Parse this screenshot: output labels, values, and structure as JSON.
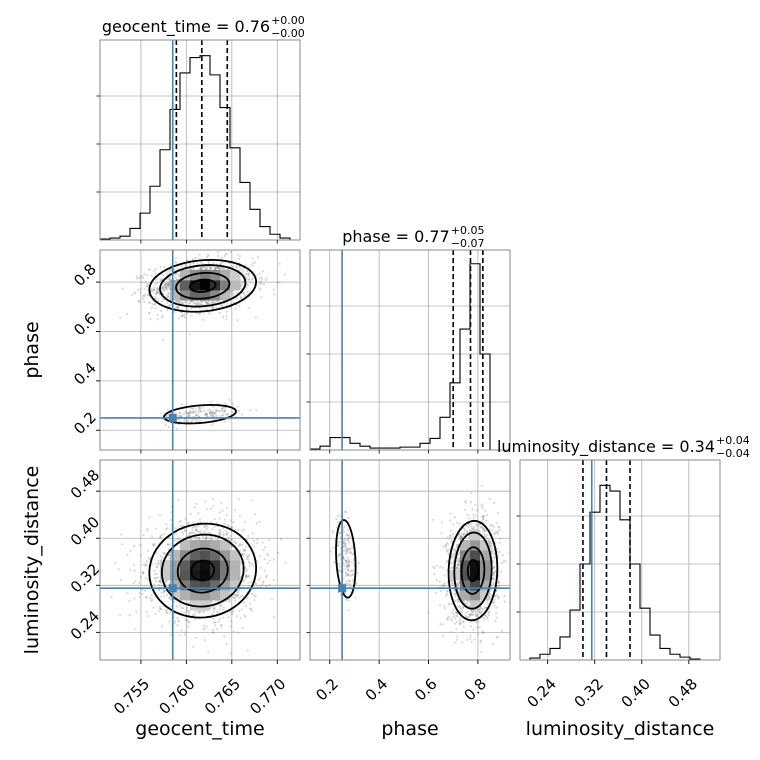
{
  "chart_data": {
    "type": "corner",
    "parameters": [
      "geocent_time",
      "phase",
      "luminosity_distance"
    ],
    "injection": {
      "color": "#4682b4",
      "geocent_time": 0.7585,
      "phase": 0.25,
      "luminosity_distance": 0.315
    },
    "axis_ranges": {
      "geocent_time": [
        0.7505,
        0.7725
      ],
      "phase": [
        0.12,
        0.93
      ],
      "luminosity_distance": [
        0.193,
        0.533
      ]
    },
    "ticks": {
      "geocent_time": {
        "values": [
          0.755,
          0.76,
          0.765,
          0.77
        ],
        "labels": [
          "0.755",
          "0.760",
          "0.765",
          "0.770"
        ]
      },
      "phase": {
        "values": [
          0.2,
          0.4,
          0.6,
          0.8
        ],
        "labels": [
          "0.2",
          "0.4",
          "0.6",
          "0.8"
        ]
      },
      "luminosity_distance": {
        "values": [
          0.24,
          0.32,
          0.4,
          0.48
        ],
        "labels": [
          "0.24",
          "0.32",
          "0.40",
          "0.48"
        ]
      }
    },
    "diag_titles": [
      {
        "param": "geocent_time",
        "text": "geocent_time = 0.76",
        "sup": "+0.00",
        "sub": "−0.00"
      },
      {
        "param": "phase",
        "text": "phase = 0.77",
        "sup": "+0.05",
        "sub": "−0.07"
      },
      {
        "param": "luminosity_distance",
        "text": "luminosity_distance = 0.34",
        "sup": "+0.04",
        "sub": "−0.04"
      }
    ],
    "axis_labels": {
      "geocent_time": "geocent_time",
      "phase": "phase",
      "luminosity_distance": "luminosity_distance"
    },
    "quantiles": {
      "geocent_time": [
        0.7589,
        0.7617,
        0.7645
      ],
      "phase": [
        0.7,
        0.77,
        0.82
      ],
      "luminosity_distance": [
        0.3,
        0.34,
        0.38
      ]
    },
    "histograms": {
      "geocent_time": {
        "edges": [
          0.7505,
          0.7516,
          0.7527,
          0.7538,
          0.7549,
          0.756,
          0.7571,
          0.7582,
          0.7593,
          0.7604,
          0.7615,
          0.7626,
          0.7637,
          0.7648,
          0.7659,
          0.767,
          0.7681,
          0.7692,
          0.7703,
          0.7714,
          0.7725
        ],
        "counts": [
          0.005,
          0.01,
          0.02,
          0.06,
          0.14,
          0.28,
          0.47,
          0.68,
          0.87,
          0.95,
          0.96,
          0.86,
          0.69,
          0.48,
          0.3,
          0.16,
          0.07,
          0.03,
          0.01,
          0.0
        ]
      },
      "phase": {
        "edges": [
          0.12,
          0.1605,
          0.201,
          0.2415,
          0.282,
          0.3225,
          0.363,
          0.4035,
          0.444,
          0.4845,
          0.525,
          0.5655,
          0.606,
          0.6465,
          0.687,
          0.7275,
          0.768,
          0.8085,
          0.849,
          0.8895,
          0.93
        ],
        "counts": [
          0.005,
          0.02,
          0.065,
          0.065,
          0.035,
          0.02,
          0.01,
          0.01,
          0.01,
          0.015,
          0.015,
          0.035,
          0.06,
          0.17,
          0.35,
          0.63,
          0.97,
          0.5,
          0.0,
          0.0
        ]
      },
      "luminosity_distance": {
        "edges": [
          0.193,
          0.21,
          0.227,
          0.244,
          0.261,
          0.278,
          0.295,
          0.312,
          0.329,
          0.346,
          0.363,
          0.38,
          0.397,
          0.414,
          0.431,
          0.448,
          0.465,
          0.482,
          0.499,
          0.516,
          0.533
        ],
        "counts": [
          0.0,
          0.01,
          0.03,
          0.06,
          0.12,
          0.26,
          0.5,
          0.77,
          0.91,
          0.88,
          0.73,
          0.5,
          0.27,
          0.13,
          0.06,
          0.03,
          0.015,
          0.005,
          0.0,
          0.0
        ]
      }
    },
    "modes": [
      {
        "pair": [
          "geocent_time",
          "phase"
        ],
        "x": 0.7618,
        "y": 0.785,
        "sx": 0.00235,
        "sy": 0.042,
        "rho": 0.15,
        "weight": 0.9,
        "levels": [
          0.6,
          1.25,
          2.0,
          2.5
        ]
      },
      {
        "pair": [
          "geocent_time",
          "phase"
        ],
        "x": 0.7615,
        "y": 0.265,
        "sx": 0.0018,
        "sy": 0.017,
        "rho": 0.3,
        "weight": 0.1,
        "levels": [
          2.2
        ]
      },
      {
        "pair": [
          "geocent_time",
          "luminosity_distance"
        ],
        "x": 0.7618,
        "y": 0.345,
        "sx": 0.0025,
        "sy": 0.034,
        "rho": 0.05,
        "weight": 1.0,
        "levels": [
          0.5,
          1.1,
          1.8,
          2.35
        ]
      },
      {
        "pair": [
          "phase",
          "luminosity_distance"
        ],
        "x": 0.78,
        "y": 0.345,
        "sx": 0.042,
        "sy": 0.036,
        "rho": 0.05,
        "weight": 0.9,
        "levels": [
          0.5,
          1.1,
          1.8,
          2.35
        ]
      },
      {
        "pair": [
          "phase",
          "luminosity_distance"
        ],
        "x": 0.265,
        "y": 0.365,
        "sx": 0.018,
        "sy": 0.03,
        "rho": -0.2,
        "weight": 0.1,
        "levels": [
          2.2
        ]
      }
    ],
    "grid": true,
    "scatter": true
  }
}
